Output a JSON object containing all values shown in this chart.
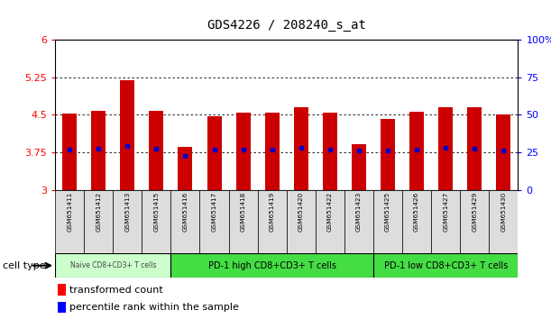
{
  "title": "GDS4226 / 208240_s_at",
  "samples": [
    "GSM651411",
    "GSM651412",
    "GSM651413",
    "GSM651415",
    "GSM651416",
    "GSM651417",
    "GSM651418",
    "GSM651419",
    "GSM651420",
    "GSM651422",
    "GSM651423",
    "GSM651425",
    "GSM651426",
    "GSM651427",
    "GSM651429",
    "GSM651430"
  ],
  "bar_values": [
    4.52,
    4.58,
    5.2,
    4.58,
    3.85,
    4.48,
    4.54,
    4.54,
    4.65,
    4.55,
    3.92,
    4.42,
    4.56,
    4.65,
    4.65,
    4.5
  ],
  "blue_dot_values": [
    3.8,
    3.82,
    3.88,
    3.82,
    3.68,
    3.8,
    3.8,
    3.8,
    3.84,
    3.8,
    3.78,
    3.78,
    3.8,
    3.84,
    3.82,
    3.78
  ],
  "ymin": 3.0,
  "ymax": 6.0,
  "yticks": [
    3,
    3.75,
    4.5,
    5.25,
    6
  ],
  "ytick_labels": [
    "3",
    "3.75",
    "4.5",
    "5.25",
    "6"
  ],
  "right_yticks": [
    0,
    25,
    50,
    75,
    100
  ],
  "right_ytick_labels": [
    "0",
    "25",
    "50",
    "75",
    "100%"
  ],
  "bar_color": "#CC0000",
  "dot_color": "#0000CC",
  "bar_bottom": 3.0,
  "naive_color": "#ccffcc",
  "pd1_high_color": "#44dd44",
  "pd1_low_color": "#44dd44",
  "naive_label": "Naive CD8+CD3+ T cells",
  "pd1_high_label": "PD-1 high CD8+CD3+ T cells",
  "pd1_low_label": "PD-1 low CD8+CD3+ T cells",
  "naive_indices": [
    0,
    3
  ],
  "pd1_high_indices": [
    4,
    10
  ],
  "pd1_low_indices": [
    11,
    15
  ],
  "cell_type_label": "cell type",
  "legend_red_label": "transformed count",
  "legend_blue_label": "percentile rank within the sample",
  "background_color": "#ffffff"
}
